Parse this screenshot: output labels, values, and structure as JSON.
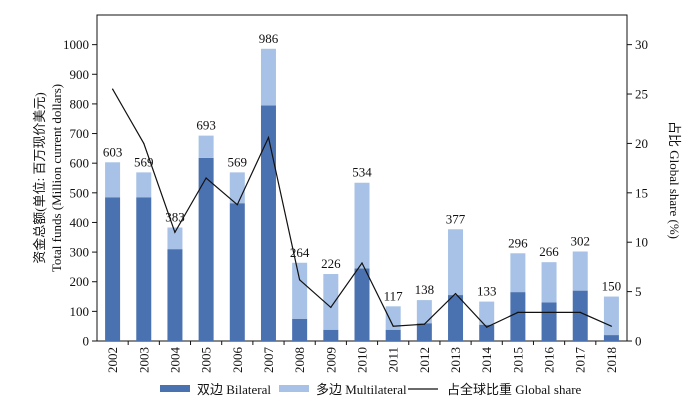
{
  "chart_data": {
    "type": "bar",
    "stacked": true,
    "categories": [
      "2002",
      "2003",
      "2004",
      "2005",
      "2006",
      "2007",
      "2008",
      "2009",
      "2010",
      "2011",
      "2012",
      "2013",
      "2014",
      "2015",
      "2016",
      "2017",
      "2018"
    ],
    "series": [
      {
        "name": "双边 Bilateral",
        "color": "#4b72b0",
        "values": [
          485,
          485,
          310,
          618,
          465,
          795,
          75,
          38,
          245,
          38,
          60,
          155,
          55,
          165,
          130,
          170,
          20
        ]
      },
      {
        "name": "多边 Multilateral",
        "color": "#a7c2e6",
        "values": [
          118,
          84,
          73,
          75,
          104,
          191,
          189,
          188,
          289,
          79,
          78,
          222,
          78,
          131,
          136,
          132,
          130
        ]
      }
    ],
    "totals": [
      603,
      569,
      383,
      693,
      569,
      986,
      264,
      226,
      534,
      117,
      138,
      377,
      133,
      296,
      266,
      302,
      150
    ],
    "line": {
      "name": "占全球比重 Global share",
      "color": "#111111",
      "values": [
        25.5,
        20,
        11,
        16.5,
        13.8,
        20.6,
        6.2,
        3.4,
        7.9,
        1.5,
        1.7,
        4.8,
        1.4,
        2.9,
        2.9,
        2.9,
        1.5
      ]
    },
    "ylabel": "资金总额(单位: 百万现价美元) Total funds (Million current dollars)",
    "ylabel_line1": "资金总额(单位: 百万现价美元)",
    "ylabel_line2": "Total funds (Million current dollars)",
    "y2label": "占比 Global share (%)",
    "ylim": [
      0,
      1100
    ],
    "yticks": [
      0,
      100,
      200,
      300,
      400,
      500,
      600,
      700,
      800,
      900,
      1000
    ],
    "y2lim": [
      0,
      33
    ],
    "y2ticks": [
      0,
      5,
      10,
      15,
      20,
      25,
      30
    ],
    "legend_position": "bottom",
    "grid": false
  }
}
